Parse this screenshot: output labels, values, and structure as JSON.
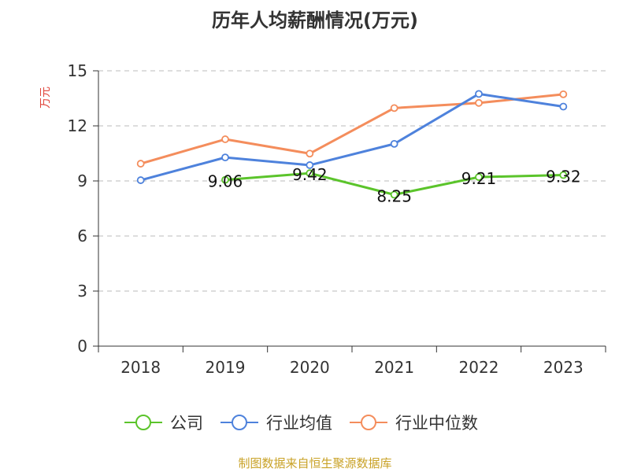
{
  "chart_data": {
    "type": "line",
    "title": "历年人均薪酬情况(万元)",
    "ylabel": "万元",
    "xlabel": "",
    "categories": [
      "2018",
      "2019",
      "2020",
      "2021",
      "2022",
      "2023"
    ],
    "ylim": [
      0,
      15
    ],
    "yticks": [
      0,
      3,
      6,
      9,
      12,
      15
    ],
    "grid": true,
    "legend_position": "bottom",
    "series": [
      {
        "name": "公司",
        "color": "#5bc42b",
        "values": [
          null,
          9.06,
          9.42,
          8.25,
          9.21,
          9.32
        ],
        "show_labels": true
      },
      {
        "name": "行业均值",
        "color": "#4e82dc",
        "values": [
          9.04,
          10.28,
          9.86,
          11.02,
          13.74,
          13.05
        ],
        "show_labels": false
      },
      {
        "name": "行业中位数",
        "color": "#f48d5c",
        "values": [
          9.94,
          11.27,
          10.49,
          12.97,
          13.25,
          13.72
        ],
        "show_labels": false
      }
    ],
    "source": "制图数据来自恒生聚源数据库",
    "ylabel_color": "#e0443a",
    "source_color": "#c9a227"
  }
}
